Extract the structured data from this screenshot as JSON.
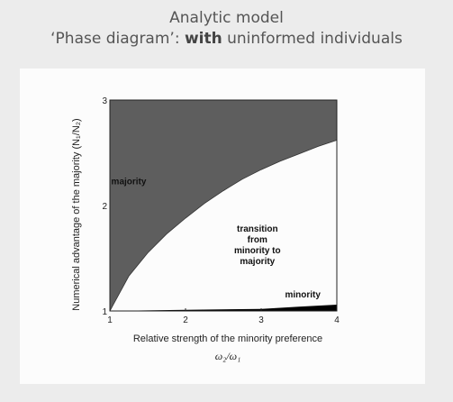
{
  "header": {
    "title": "Analytic model",
    "subtitle_prefix": "‘Phase diagram’: ",
    "subtitle_bold": "with",
    "subtitle_suffix": " uninformed individuals"
  },
  "chart_data": {
    "type": "area",
    "xlabel": "Relative strength of the minority preference",
    "xlabel_symbol": "ω₂/ω₁",
    "ylabel": "Numerical advantage of the majority (N₁/N₂)",
    "xlim": [
      1,
      4
    ],
    "ylim": [
      1,
      3
    ],
    "x_ticks": [
      "1",
      "2",
      "3",
      "4"
    ],
    "y_ticks": [
      "1",
      "2",
      "3"
    ],
    "boundaries": [
      {
        "name": "majority_transition",
        "x": [
          1.0,
          1.25,
          1.5,
          1.75,
          2.0,
          2.25,
          2.5,
          2.75,
          3.0,
          3.25,
          3.5,
          3.75,
          4.0
        ],
        "y": [
          1.0,
          1.33,
          1.55,
          1.73,
          1.88,
          2.02,
          2.14,
          2.25,
          2.34,
          2.42,
          2.49,
          2.56,
          2.62
        ]
      },
      {
        "name": "minority_transition",
        "x": [
          1.0,
          2.0,
          3.0,
          3.5,
          4.0
        ],
        "y": [
          1.0,
          1.01,
          1.02,
          1.04,
          1.06
        ]
      }
    ],
    "regions": [
      {
        "label": "majority",
        "color": "#5e5e5e",
        "at": [
          1.25,
          2.2
        ]
      },
      {
        "label": "transition\nfrom\nminority to\nmajority",
        "color": "#ffffff",
        "at": [
          2.95,
          1.6
        ]
      },
      {
        "label": "minority",
        "color": "#000000",
        "at": [
          3.55,
          1.13
        ]
      }
    ]
  }
}
